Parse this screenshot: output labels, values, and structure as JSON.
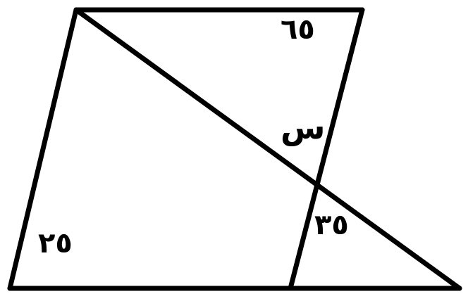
{
  "figure": {
    "type": "geometry",
    "stroke_color": "#000000",
    "background_color": "#ffffff"
  },
  "angles": {
    "top_right": "٦٥",
    "unknown": "س",
    "intersection_below": "٣٥",
    "bottom_left": "٢٥"
  }
}
